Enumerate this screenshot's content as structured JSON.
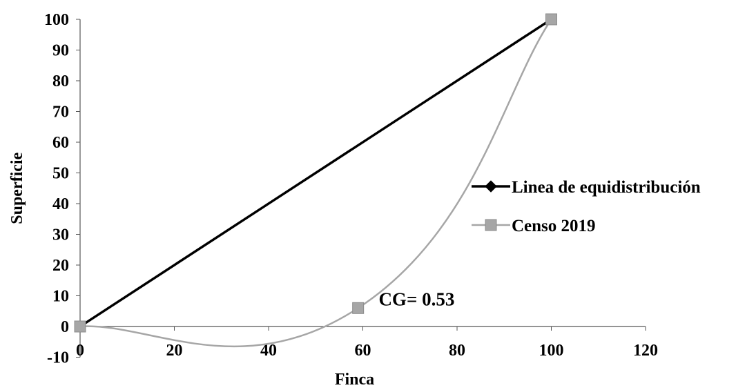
{
  "chart_data": {
    "type": "line",
    "xlabel": "Finca",
    "ylabel": "Superficie",
    "xlim": [
      0,
      120
    ],
    "ylim": [
      -10,
      100
    ],
    "xticks": [
      0,
      20,
      40,
      60,
      80,
      100,
      120
    ],
    "yticks": [
      -10,
      0,
      10,
      20,
      30,
      40,
      50,
      60,
      70,
      80,
      90,
      100
    ],
    "xtick_labels": [
      "0",
      "20",
      "40",
      "60",
      "80",
      "100",
      "120"
    ],
    "ytick_labels": [
      "-10",
      "0",
      "10",
      "20",
      "30",
      "40",
      "50",
      "60",
      "70",
      "80",
      "90",
      "100"
    ],
    "grid": false,
    "legend_position": "right",
    "annotation": {
      "text": "CG= 0.53",
      "x": 66,
      "y": 8
    },
    "series": [
      {
        "name": "Linea de equidistribución",
        "color": "#000000",
        "marker": "diamond",
        "smooth": false,
        "x": [
          0,
          100
        ],
        "y": [
          0,
          100
        ]
      },
      {
        "name": "Censo 2019",
        "color": "#a6a6a6",
        "marker": "square",
        "smooth": true,
        "x": [
          0,
          59,
          100
        ],
        "y": [
          0,
          6,
          100
        ]
      }
    ]
  }
}
